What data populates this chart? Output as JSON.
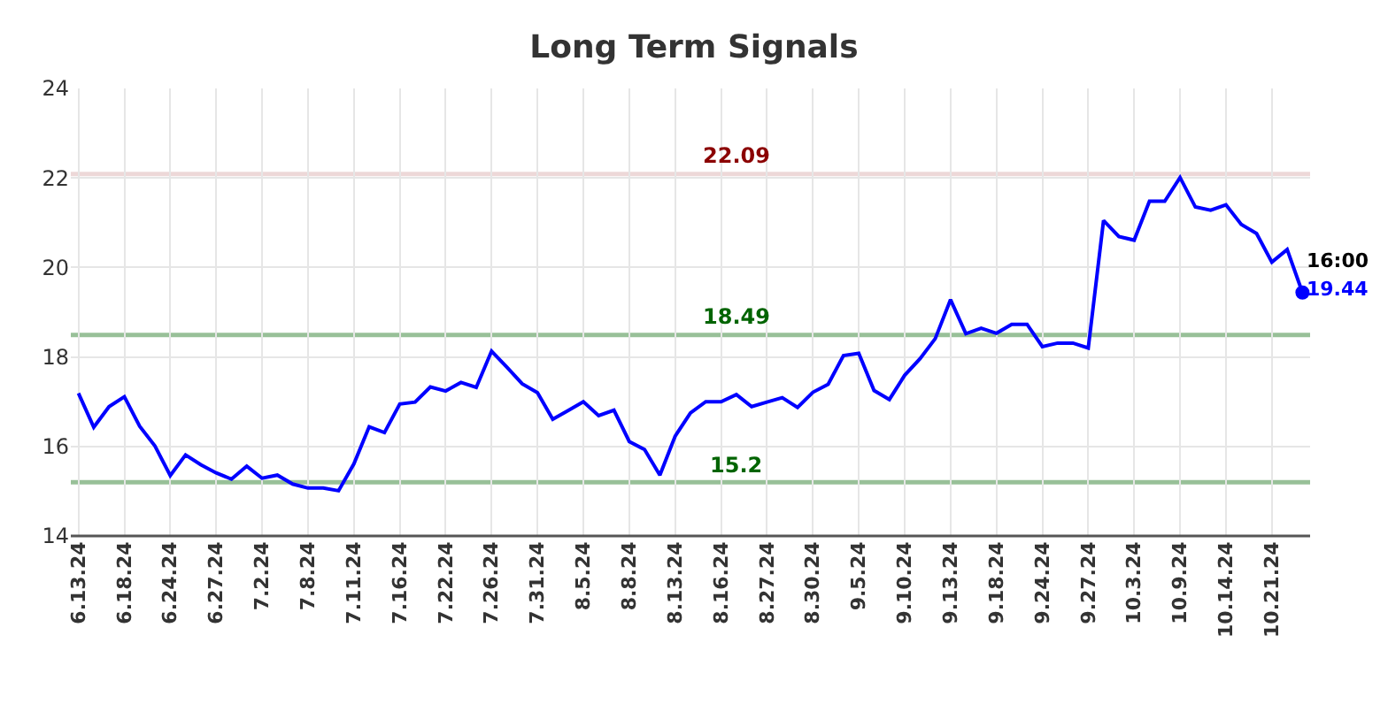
{
  "chart_data": {
    "type": "line",
    "title": "Long Term Signals",
    "categories": [
      "6.13.24",
      null,
      null,
      "6.18.24",
      null,
      null,
      "6.24.24",
      null,
      null,
      "6.27.24",
      null,
      null,
      "7.2.24",
      null,
      null,
      "7.8.24",
      null,
      null,
      "7.11.24",
      null,
      null,
      "7.16.24",
      null,
      null,
      "7.22.24",
      null,
      null,
      "7.26.24",
      null,
      null,
      "7.31.24",
      null,
      null,
      "8.5.24",
      null,
      null,
      "8.8.24",
      null,
      null,
      "8.13.24",
      null,
      null,
      "8.16.24",
      null,
      null,
      "8.27.24",
      null,
      null,
      "8.30.24",
      null,
      null,
      "9.5.24",
      null,
      null,
      "9.10.24",
      null,
      null,
      "9.13.24",
      null,
      null,
      "9.18.24",
      null,
      null,
      "9.24.24",
      null,
      null,
      "9.27.24",
      null,
      null,
      "10.3.24",
      null,
      null,
      "10.9.24",
      null,
      null,
      "10.14.24",
      null,
      null,
      "10.21.24",
      null,
      null
    ],
    "series": [
      {
        "color": "#0000ff",
        "values": [
          17.19,
          16.43,
          16.89,
          17.11,
          16.45,
          16.01,
          15.35,
          15.81,
          15.59,
          15.41,
          15.27,
          15.56,
          15.29,
          15.36,
          15.16,
          15.07,
          15.07,
          15.01,
          15.61,
          16.44,
          16.31,
          16.95,
          16.99,
          17.33,
          17.24,
          17.43,
          17.32,
          18.13,
          17.77,
          17.4,
          17.2,
          16.61,
          16.8,
          17.0,
          16.69,
          16.81,
          16.11,
          15.93,
          15.36,
          16.23,
          16.75,
          17.0,
          17.0,
          17.16,
          16.89,
          16.99,
          17.09,
          16.87,
          17.21,
          17.39,
          18.03,
          18.08,
          17.25,
          17.05,
          17.59,
          17.96,
          18.41,
          19.28,
          18.52,
          18.64,
          18.53,
          18.73,
          18.73,
          18.23,
          18.31,
          18.31,
          18.2,
          21.05,
          20.69,
          20.61,
          21.48,
          21.48,
          22.01,
          21.35,
          21.28,
          21.4,
          20.96,
          20.76,
          20.12,
          20.4,
          19.44
        ]
      }
    ],
    "ylim": [
      14,
      24
    ],
    "yticks": [
      14,
      16,
      18,
      20,
      22,
      24
    ],
    "grid": true,
    "ref_lines": [
      {
        "axis": "y",
        "value": 22.09,
        "label": "22.09",
        "color": "#8b0000"
      },
      {
        "axis": "y",
        "value": 18.49,
        "label": "18.49",
        "color": "#006400"
      },
      {
        "axis": "y",
        "value": 15.2,
        "label": "15.2",
        "color": "#006400"
      }
    ],
    "annotations": [
      "16:00",
      "19.44"
    ]
  }
}
